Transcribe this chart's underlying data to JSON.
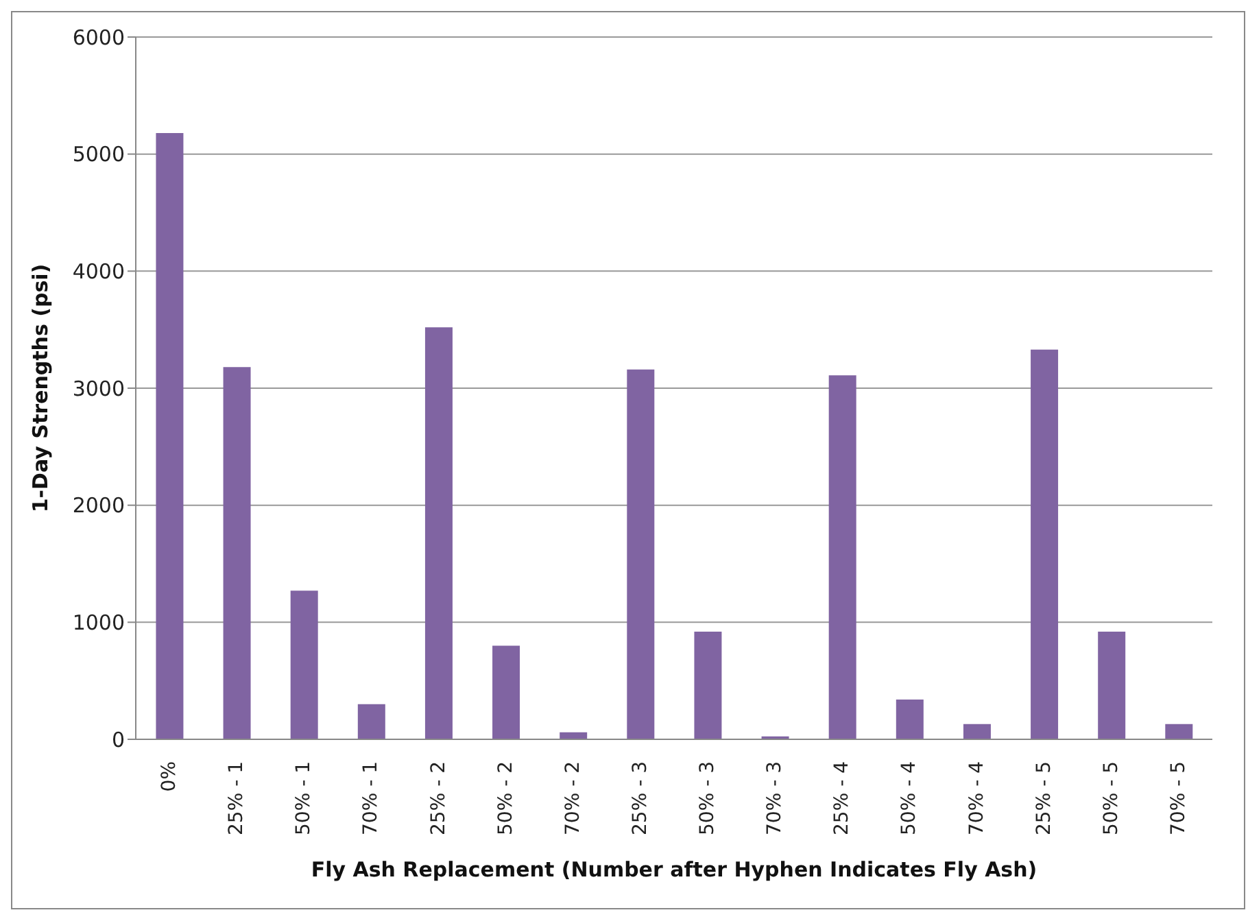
{
  "chart_data": {
    "type": "bar",
    "xlabel": "Fly Ash Replacement (Number after Hyphen Indicates Fly Ash)",
    "ylabel": "1-Day Strengths (psi)",
    "categories": [
      "0%",
      "25% - 1",
      "50% - 1",
      "70% - 1",
      "25% - 2",
      "50% - 2",
      "70% - 2",
      "25% - 3",
      "50% - 3",
      "70% - 3",
      "25% - 4",
      "50% - 4",
      "70% - 4",
      "25% - 5",
      "50% - 5",
      "70% - 5"
    ],
    "values": [
      5180,
      3180,
      1270,
      300,
      3520,
      800,
      60,
      3160,
      920,
      25,
      3110,
      340,
      130,
      3330,
      920,
      130
    ],
    "color": "#8064a2",
    "ylim": [
      0,
      6000
    ],
    "yticks": [
      0,
      1000,
      2000,
      3000,
      4000,
      5000,
      6000
    ],
    "grid": "y"
  }
}
